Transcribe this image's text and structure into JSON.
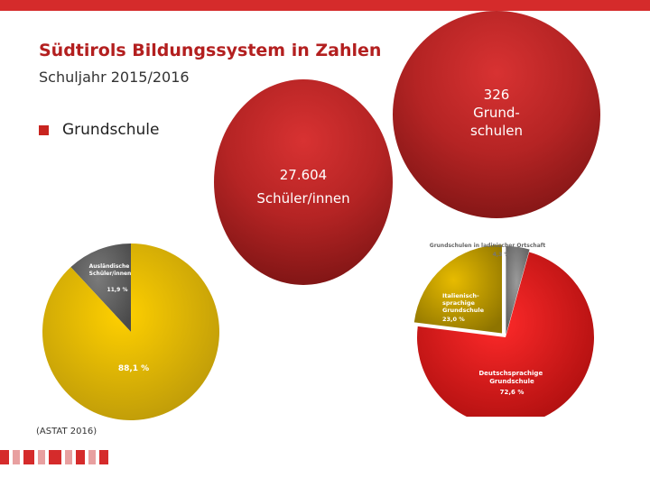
{
  "header": {
    "title": "Südtirols Bildungssystem in Zahlen",
    "subtitle": "Schuljahr 2015/2016"
  },
  "bullet": {
    "label": "Grundschule"
  },
  "bubbles": {
    "schools": {
      "lines": [
        "326",
        "Grund-",
        "schulen"
      ]
    },
    "students": {
      "lines": [
        "27.604",
        "Schüler/innen"
      ]
    }
  },
  "source": "(ASTAT 2016)",
  "colors": {
    "accent": "#d52b2b",
    "bubble_red": "#b52424",
    "pie_yellow": "#f1c500",
    "pie_gray": "#646464",
    "pie_red": "#dc1b1b"
  },
  "chart_data": [
    {
      "type": "pie",
      "title": "",
      "categories": [
        "88,1 %",
        "Ausländische Schüler/innen"
      ],
      "series": [
        {
          "values": [
            88.1,
            11.9
          ],
          "value_labels": [
            "88,1 %",
            "11,9 %"
          ]
        }
      ],
      "colors": [
        "#f1c500",
        "#646464"
      ]
    },
    {
      "type": "pie",
      "title": "",
      "categories": [
        "Grundschulen in ladinischer Ortschaft",
        "Italienischsprachige Grundschule",
        "Deutschsprachige Grundschule"
      ],
      "series": [
        {
          "values": [
            4.3,
            23.0,
            72.6
          ],
          "value_labels": [
            "4,3 %",
            "23,0 %",
            "72,6 %"
          ]
        }
      ],
      "colors": [
        "#7a7a7a",
        "#d2a800",
        "#dc1b1b"
      ]
    }
  ]
}
